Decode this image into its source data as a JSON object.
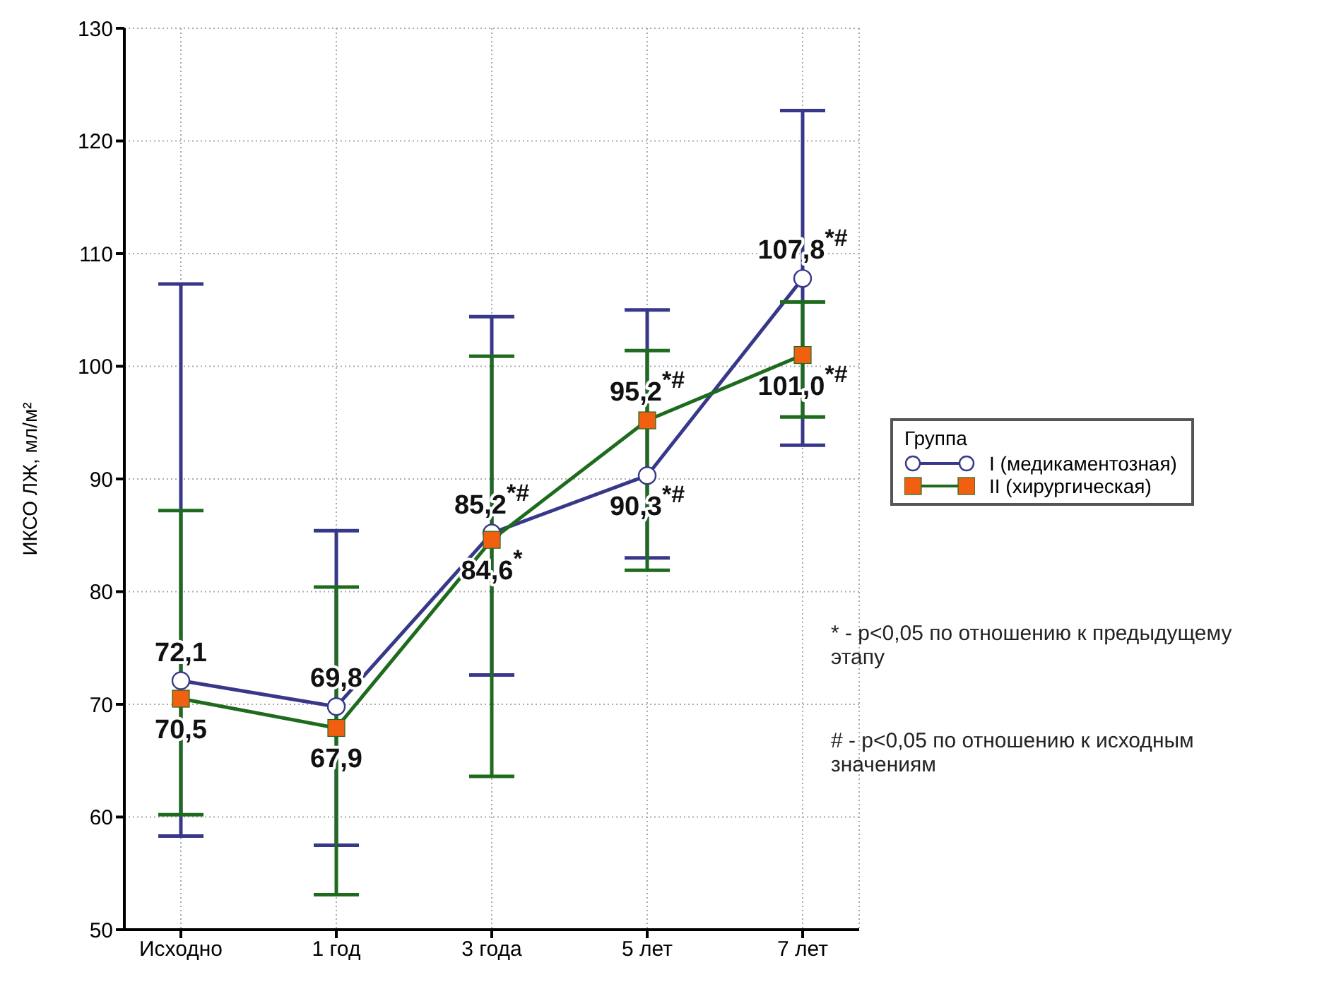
{
  "chart_data": {
    "type": "line",
    "ylabel": "ИКСО ЛЖ, мл/м²",
    "legend_title": "Группа",
    "legend": "right",
    "grid": true,
    "categories": [
      "Исходно",
      "1 год",
      "3 года",
      "5 лет",
      "7 лет"
    ],
    "ylim": [
      50,
      130
    ],
    "yticks": [
      50,
      60,
      70,
      80,
      90,
      100,
      110,
      120,
      130
    ],
    "series": [
      {
        "name": "I (медикаментозная)",
        "color": "#38388a",
        "marker": "circle",
        "values": [
          72.1,
          69.8,
          85.2,
          90.3,
          107.8
        ],
        "errors": [
          [
            58.3,
            107.3
          ],
          [
            57.5,
            85.4
          ],
          [
            72.6,
            104.4
          ],
          [
            83.0,
            105.0
          ],
          [
            93.0,
            122.7
          ]
        ],
        "value_labels": [
          "72,1",
          "69,8",
          "85,2$^{*#}$",
          "90,3$^{*#}$",
          "107,8$^{*#}$"
        ]
      },
      {
        "name": "II (хирургическая)",
        "color": "#1e6b1e",
        "marker": "square",
        "colors": [
          "#f06010",
          "#f06010",
          "#f06010",
          "#f06010",
          "#f06010"
        ],
        "values": [
          70.5,
          67.9,
          84.6,
          95.2,
          101.0
        ],
        "errors": [
          [
            60.2,
            87.2
          ],
          [
            53.1,
            80.4
          ],
          [
            63.6,
            100.9
          ],
          [
            81.9,
            101.4
          ],
          [
            95.5,
            105.7
          ]
        ],
        "value_labels": [
          "70,5",
          "67,9",
          "84,6$^{*}$",
          "95,2$^{*#}$",
          "101,0$^{*#}$"
        ]
      }
    ],
    "annotations": [
      "* - p<0,05 по отношению к предыдущему этапу",
      "# - p<0,05 по отношению к исходным значениям"
    ]
  }
}
